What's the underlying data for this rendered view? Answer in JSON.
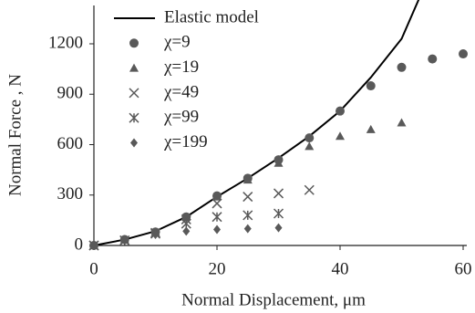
{
  "chart_data": {
    "type": "scatter",
    "xlabel": "Normal Displacement, μm",
    "ylabel": "Normal Force , N",
    "xlim": [
      0,
      62
    ],
    "ylim": [
      0,
      1420
    ],
    "xticks": [
      0,
      20,
      40,
      60
    ],
    "yticks": [
      0,
      300,
      600,
      900,
      1200
    ],
    "series": [
      {
        "name": "Elastic model",
        "kind": "line",
        "color": "#000000",
        "x": [
          0,
          5,
          10,
          15,
          20,
          25,
          30,
          35,
          40,
          45,
          50,
          55
        ],
        "values": [
          0,
          35,
          85,
          170,
          290,
          400,
          520,
          650,
          800,
          1000,
          1230,
          1650
        ]
      },
      {
        "name": "χ=9",
        "kind": "circle",
        "color": "#595959",
        "x": [
          0,
          5,
          10,
          15,
          20,
          25,
          30,
          35,
          40,
          45,
          50,
          55,
          60
        ],
        "values": [
          0,
          35,
          80,
          170,
          295,
          400,
          510,
          640,
          800,
          950,
          1060,
          1110,
          1140
        ]
      },
      {
        "name": "χ=19",
        "kind": "triangle",
        "color": "#595959",
        "x": [
          0,
          5,
          10,
          15,
          20,
          25,
          30,
          35,
          40,
          45,
          50
        ],
        "values": [
          0,
          35,
          80,
          170,
          290,
          390,
          490,
          590,
          650,
          690,
          730
        ]
      },
      {
        "name": "χ=49",
        "kind": "cross",
        "color": "#595959",
        "x": [
          0,
          5,
          10,
          15,
          20,
          25,
          30,
          35
        ],
        "values": [
          0,
          30,
          75,
          155,
          250,
          290,
          310,
          330
        ]
      },
      {
        "name": "χ=99",
        "kind": "star",
        "color": "#595959",
        "x": [
          0,
          5,
          10,
          15,
          20,
          25,
          30
        ],
        "values": [
          0,
          30,
          70,
          130,
          170,
          180,
          190
        ]
      },
      {
        "name": "χ=199",
        "kind": "diamond",
        "color": "#595959",
        "x": [
          0,
          5,
          10,
          15,
          20,
          25,
          30
        ],
        "values": [
          0,
          30,
          65,
          85,
          95,
          100,
          105
        ]
      }
    ]
  }
}
